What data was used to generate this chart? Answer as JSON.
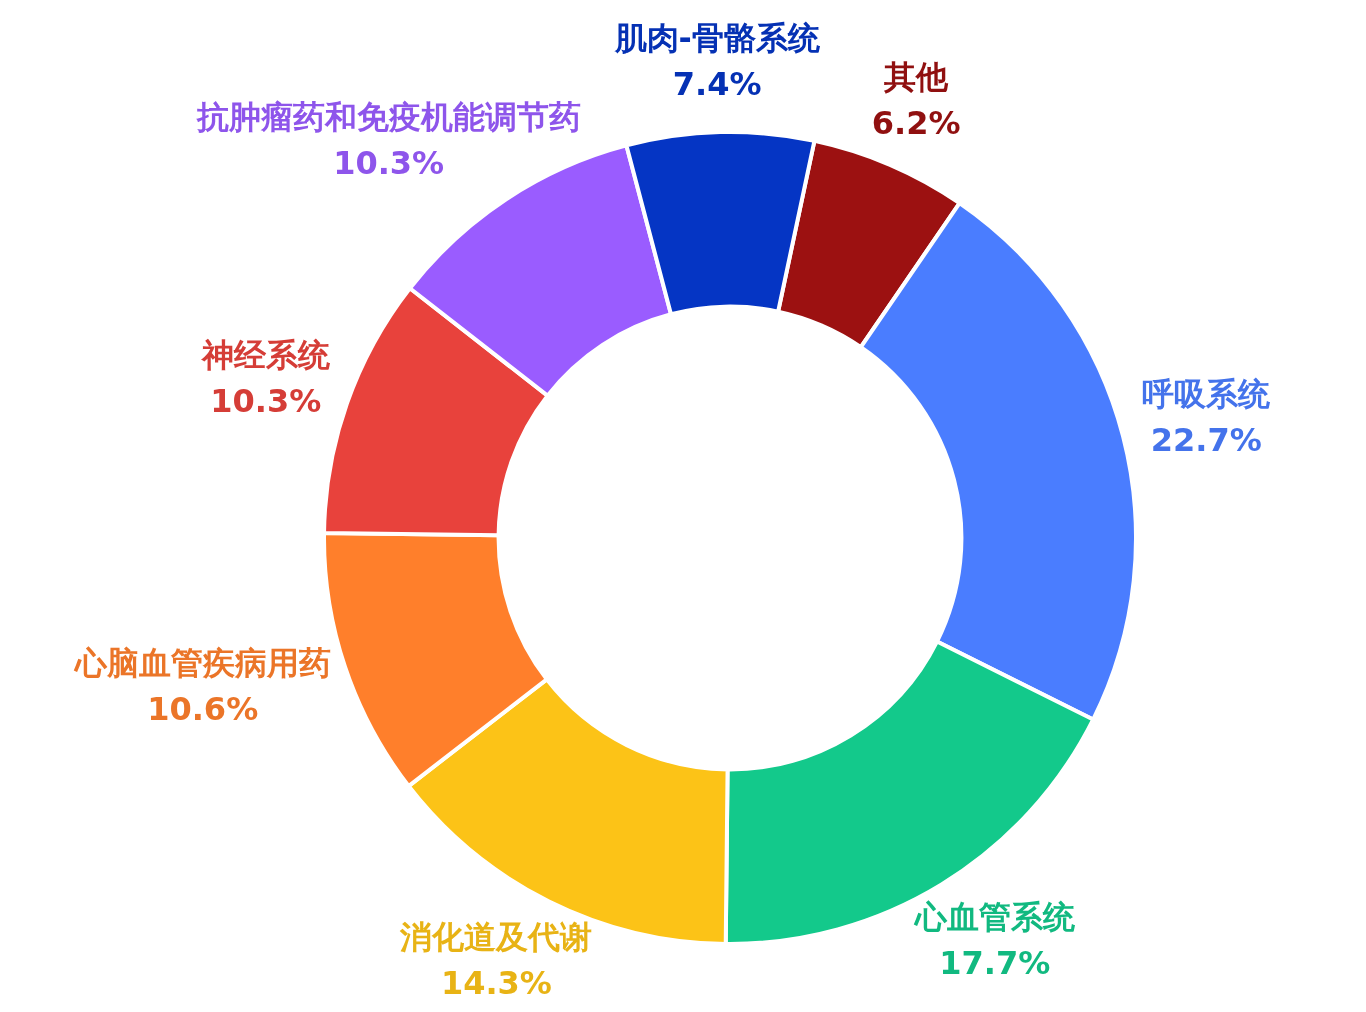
{
  "chart_data": {
    "type": "donut",
    "categories": [
      "其他",
      "呼吸系统",
      "心血管系统",
      "消化道及代谢",
      "心脑血管疾病用药",
      "神经系统",
      "抗肿瘤药和免疫机能调节药",
      "肌肉-骨骼系统"
    ],
    "values": [
      6.2,
      22.7,
      17.7,
      14.3,
      10.6,
      10.3,
      10.3,
      7.4
    ],
    "colors": [
      "#9c1111",
      "#4a7dff",
      "#13c98b",
      "#fcc317",
      "#ff7f2b",
      "#e8423c",
      "#9a5cff",
      "#0535c4"
    ],
    "value_labels": [
      "6.2%",
      "22.7%",
      "17.7%",
      "14.3%",
      "10.6%",
      "10.3%",
      "10.3%",
      "7.4%"
    ]
  }
}
